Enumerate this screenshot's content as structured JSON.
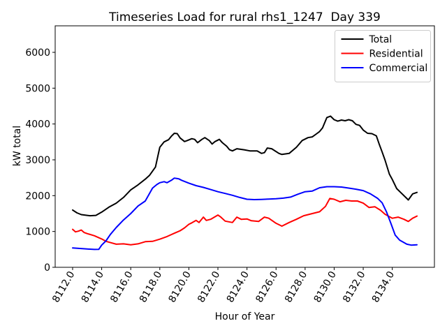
{
  "chart_data": {
    "type": "line",
    "title": "Timeseries Load for rural rhs1_1247  Day 339",
    "xlabel": "Hour of Year",
    "ylabel": "kW total",
    "xlim": [
      8110.8,
      8136.9
    ],
    "ylim": [
      0,
      6740
    ],
    "grid": false,
    "legend_position": "upper right",
    "background_color": "#ffffff",
    "spine_color": "#000000",
    "legend_border_color": "#cccccc",
    "xtick_values": [
      8112,
      8114,
      8116,
      8118,
      8120,
      8122,
      8124,
      8126,
      8128,
      8130,
      8132,
      8134
    ],
    "xtick_labels": [
      "8112.0",
      "8114.0",
      "8116.0",
      "8118.0",
      "8120.0",
      "8122.0",
      "8124.0",
      "8126.0",
      "8128.0",
      "8130.0",
      "8132.0",
      "8134.0"
    ],
    "ytick_values": [
      0,
      1000,
      2000,
      3000,
      4000,
      5000,
      6000
    ],
    "ytick_labels": [
      "0",
      "1000",
      "2000",
      "3000",
      "4000",
      "5000",
      "6000"
    ],
    "series": [
      {
        "name": "Total",
        "color": "#000000",
        "x": [
          8112.0,
          8112.3,
          8112.6,
          8113.0,
          8113.2,
          8113.6,
          8114.0,
          8114.5,
          8115.0,
          8115.5,
          8116.0,
          8116.5,
          8117.0,
          8117.3,
          8117.7,
          8118.0,
          8118.3,
          8118.6,
          8118.8,
          8119.0,
          8119.2,
          8119.4,
          8119.7,
          8119.9,
          8120.2,
          8120.4,
          8120.6,
          8120.9,
          8121.1,
          8121.4,
          8121.6,
          8121.8,
          8122.1,
          8122.3,
          8122.6,
          8122.8,
          8123.0,
          8123.3,
          8123.8,
          8124.2,
          8124.7,
          8125.0,
          8125.2,
          8125.4,
          8125.7,
          8126.2,
          8126.4,
          8126.9,
          8127.4,
          8127.8,
          8128.2,
          8128.5,
          8128.8,
          8129.0,
          8129.2,
          8129.5,
          8129.75,
          8130.0,
          8130.25,
          8130.5,
          8130.75,
          8131.0,
          8131.25,
          8131.5,
          8131.75,
          8132.0,
          8132.3,
          8132.6,
          8132.9,
          8133.1,
          8133.3,
          8133.5,
          8133.8,
          8134.0,
          8134.3,
          8134.6,
          8135.0,
          8135.1,
          8135.4,
          8135.7
        ],
        "y": [
          1600,
          1520,
          1470,
          1450,
          1440,
          1450,
          1540,
          1680,
          1790,
          1950,
          2160,
          2300,
          2460,
          2570,
          2800,
          3350,
          3500,
          3560,
          3660,
          3740,
          3730,
          3610,
          3510,
          3540,
          3590,
          3570,
          3480,
          3570,
          3620,
          3540,
          3440,
          3510,
          3570,
          3480,
          3380,
          3280,
          3250,
          3310,
          3280,
          3250,
          3250,
          3180,
          3200,
          3330,
          3310,
          3180,
          3150,
          3180,
          3350,
          3540,
          3620,
          3640,
          3730,
          3790,
          3890,
          4180,
          4220,
          4120,
          4080,
          4110,
          4090,
          4120,
          4090,
          3990,
          3960,
          3830,
          3740,
          3730,
          3670,
          3440,
          3220,
          2990,
          2600,
          2450,
          2200,
          2080,
          1920,
          1880,
          2050,
          2090
        ]
      },
      {
        "name": "Residential",
        "color": "#ff0000",
        "x": [
          8112.0,
          8112.2,
          8112.4,
          8112.6,
          8112.8,
          8113.0,
          8113.5,
          8114.0,
          8114.3,
          8114.6,
          8115.0,
          8115.5,
          8116.0,
          8116.5,
          8117.0,
          8117.5,
          8118.0,
          8118.5,
          8119.0,
          8119.4,
          8119.7,
          8120.0,
          8120.2,
          8120.5,
          8120.7,
          8121.0,
          8121.2,
          8121.5,
          8122.0,
          8122.2,
          8122.5,
          8123.0,
          8123.3,
          8123.6,
          8124.0,
          8124.3,
          8124.8,
          8125.2,
          8125.5,
          8126.0,
          8126.4,
          8126.9,
          8127.4,
          8127.9,
          8128.4,
          8129.0,
          8129.4,
          8129.7,
          8130.0,
          8130.4,
          8130.8,
          8131.2,
          8131.6,
          8132.0,
          8132.4,
          8132.8,
          8133.2,
          8133.5,
          8134.0,
          8134.4,
          8134.8,
          8135.1,
          8135.4,
          8135.7
        ],
        "y": [
          1060,
          990,
          1010,
          1040,
          970,
          940,
          880,
          790,
          725,
          690,
          645,
          655,
          630,
          655,
          715,
          725,
          785,
          860,
          950,
          1020,
          1100,
          1200,
          1240,
          1310,
          1250,
          1400,
          1310,
          1340,
          1460,
          1400,
          1290,
          1250,
          1400,
          1340,
          1350,
          1300,
          1280,
          1400,
          1370,
          1230,
          1150,
          1250,
          1340,
          1440,
          1490,
          1550,
          1700,
          1920,
          1900,
          1830,
          1870,
          1850,
          1850,
          1790,
          1670,
          1690,
          1590,
          1480,
          1370,
          1400,
          1340,
          1280,
          1370,
          1430
        ]
      },
      {
        "name": "Commercial",
        "color": "#0000ff",
        "x": [
          8112.0,
          8112.5,
          8113.0,
          8113.5,
          8113.8,
          8114.0,
          8114.3,
          8114.6,
          8115.0,
          8115.5,
          8116.0,
          8116.5,
          8117.0,
          8117.5,
          8117.8,
          8118.0,
          8118.3,
          8118.5,
          8118.8,
          8119.0,
          8119.3,
          8119.5,
          8120.0,
          8120.5,
          8121.0,
          8121.5,
          8122.0,
          8122.5,
          8123.0,
          8123.5,
          8124.0,
          8124.5,
          8125.0,
          8125.5,
          8126.0,
          8126.5,
          8127.0,
          8127.5,
          8128.0,
          8128.5,
          8129.0,
          8129.5,
          8130.0,
          8130.5,
          8131.0,
          8131.5,
          8132.0,
          8132.5,
          8133.0,
          8133.3,
          8133.6,
          8133.9,
          8134.2,
          8134.5,
          8135.0,
          8135.3,
          8135.7
        ],
        "y": [
          540,
          525,
          510,
          498,
          500,
          620,
          740,
          920,
          1110,
          1320,
          1500,
          1710,
          1850,
          2210,
          2310,
          2360,
          2390,
          2360,
          2430,
          2490,
          2470,
          2430,
          2350,
          2280,
          2230,
          2170,
          2110,
          2060,
          2010,
          1950,
          1900,
          1890,
          1895,
          1905,
          1915,
          1930,
          1960,
          2040,
          2110,
          2130,
          2220,
          2250,
          2250,
          2240,
          2210,
          2180,
          2140,
          2050,
          1920,
          1800,
          1550,
          1230,
          900,
          760,
          645,
          620,
          630
        ]
      }
    ]
  }
}
